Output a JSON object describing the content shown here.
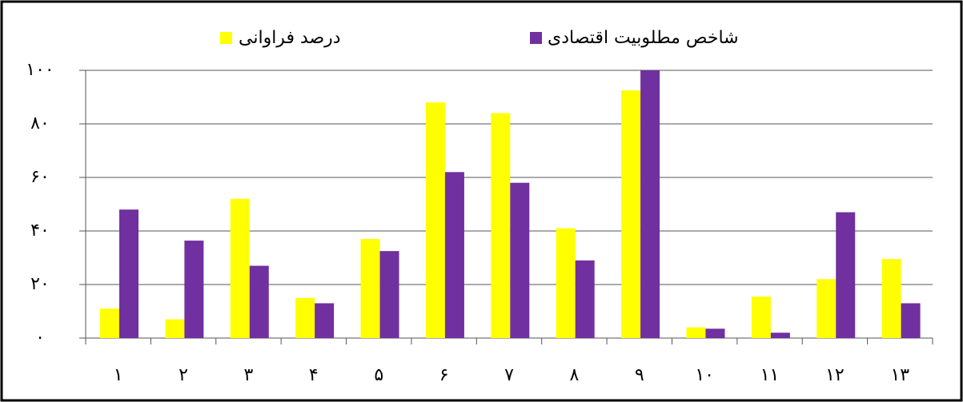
{
  "chart_data": {
    "type": "bar",
    "categories": [
      "۱",
      "۲",
      "۳",
      "۴",
      "۵",
      "۶",
      "۷",
      "۸",
      "۹",
      "۱۰",
      "۱۱",
      "۱۲",
      "۱۳"
    ],
    "series": [
      {
        "name": "درصد فراوانی",
        "color": "#ffff00",
        "values": [
          11,
          7,
          52,
          15,
          37,
          88,
          84,
          41,
          92.5,
          4,
          15.5,
          22,
          29.5
        ]
      },
      {
        "name": "شاخص مطلوبیت اقتصادی",
        "color": "#7030a0",
        "values": [
          48,
          36.4,
          27,
          13,
          32.5,
          62,
          58,
          29,
          100,
          3.5,
          2,
          47,
          13
        ]
      }
    ],
    "ylim": [
      0,
      100
    ],
    "yticks": [
      {
        "value": 0,
        "label": "۰"
      },
      {
        "value": 20,
        "label": "۲۰"
      },
      {
        "value": 40,
        "label": "۴۰"
      },
      {
        "value": 60,
        "label": "۶۰"
      },
      {
        "value": 80,
        "label": "۸۰"
      },
      {
        "value": 100,
        "label": "۱۰۰"
      }
    ],
    "grid": true
  }
}
